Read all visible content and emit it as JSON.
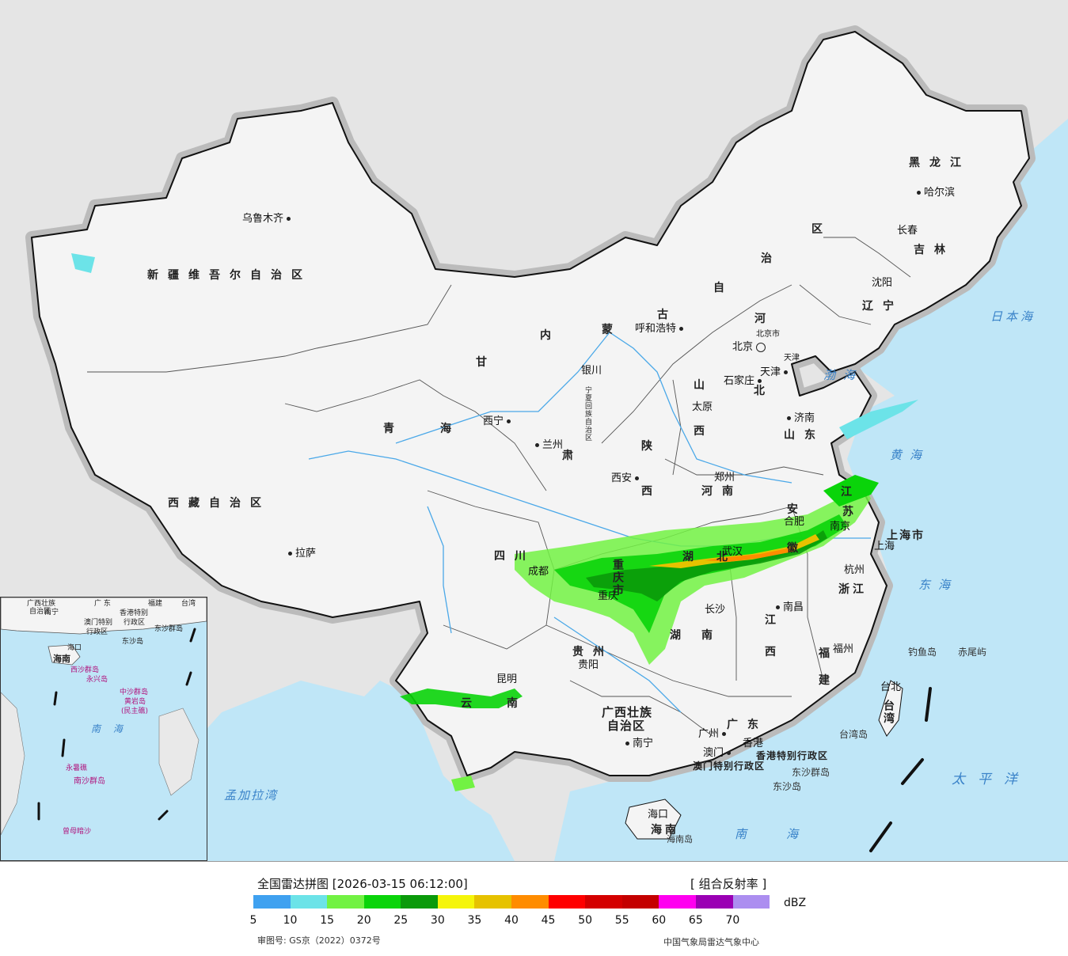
{
  "cities": [
    {
      "id": "urumqi",
      "name": "乌鲁木齐",
      "dot_after": true
    },
    {
      "id": "lhasa",
      "name": "拉萨",
      "dot_after": false
    },
    {
      "id": "xining",
      "name": "西宁",
      "dot_after": true
    },
    {
      "id": "lanzhou",
      "name": "兰州",
      "dot_after": false
    },
    {
      "id": "yinchuan",
      "name": "银川",
      "dot_after": false
    },
    {
      "id": "hohhot",
      "name": "呼和浩特",
      "dot_after": true
    },
    {
      "id": "beijing",
      "name": "北京",
      "dot_after": false
    },
    {
      "id": "beijing-shi",
      "name": "北京市",
      "dot_after": false
    },
    {
      "id": "tianjin",
      "name": "天津",
      "dot_after": true
    },
    {
      "id": "tianjin-shi",
      "name": "天津",
      "dot_after": false
    },
    {
      "id": "shijiazhuang",
      "name": "石家庄",
      "dot_after": true
    },
    {
      "id": "taiyuan",
      "name": "太原",
      "dot_after": false
    },
    {
      "id": "jinan",
      "name": "济南",
      "dot_after": false
    },
    {
      "id": "zhengzhou",
      "name": "郑州",
      "dot_after": false
    },
    {
      "id": "xian",
      "name": "西安",
      "dot_after": true
    },
    {
      "id": "chengdu",
      "name": "成都",
      "dot_after": false
    },
    {
      "id": "chongqing",
      "name": "重庆",
      "dot_after": false
    },
    {
      "id": "guiyang",
      "name": "贵阳",
      "dot_after": false
    },
    {
      "id": "kunming",
      "name": "昆明",
      "dot_after": false
    },
    {
      "id": "nanning",
      "name": "南宁",
      "dot_after": false
    },
    {
      "id": "guangzhou",
      "name": "广州",
      "dot_after": true
    },
    {
      "id": "hongkong",
      "name": "香港",
      "dot_after": false
    },
    {
      "id": "macau",
      "name": "澳门",
      "dot_after": true
    },
    {
      "id": "haikou",
      "name": "海口",
      "dot_after": false
    },
    {
      "id": "changsha",
      "name": "长沙",
      "dot_after": false
    },
    {
      "id": "nanchang",
      "name": "南昌",
      "dot_after": false
    },
    {
      "id": "fuzhou",
      "name": "福州",
      "dot_after": false
    },
    {
      "id": "taipei",
      "name": "台北",
      "dot_after": false
    },
    {
      "id": "hangzhou",
      "name": "杭州",
      "dot_after": false
    },
    {
      "id": "shanghai",
      "name": "上海",
      "dot_after": false
    },
    {
      "id": "nanjing",
      "name": "南京",
      "dot_after": false
    },
    {
      "id": "hefei",
      "name": "合肥",
      "dot_after": false
    },
    {
      "id": "wuhan",
      "name": "武汉",
      "dot_after": false
    },
    {
      "id": "shenyang",
      "name": "沈阳",
      "dot_after": false
    },
    {
      "id": "changchun",
      "name": "长春",
      "dot_after": false
    },
    {
      "id": "harbin",
      "name": "哈尔滨",
      "dot_after": false
    }
  ],
  "provinces": [
    {
      "id": "xinjiang",
      "name": "新疆维吾尔自治区"
    },
    {
      "id": "xizang",
      "name": "西藏自治区"
    },
    {
      "id": "qinghai-a",
      "name": "青"
    },
    {
      "id": "qinghai-b",
      "name": "海"
    },
    {
      "id": "gansu",
      "name": "甘"
    },
    {
      "id": "gansu-b",
      "name": "肃"
    },
    {
      "id": "neimenggu-1",
      "name": "内"
    },
    {
      "id": "neimenggu-2",
      "name": "蒙"
    },
    {
      "id": "neimenggu-3",
      "name": "古"
    },
    {
      "id": "neimenggu-4",
      "name": "自"
    },
    {
      "id": "neimenggu-5",
      "name": "治"
    },
    {
      "id": "neimenggu-6",
      "name": "区"
    },
    {
      "id": "ningxia",
      "name": "宁夏回族自治区"
    },
    {
      "id": "heilongjiang",
      "name": "黑龙江"
    },
    {
      "id": "jilin",
      "name": "吉林"
    },
    {
      "id": "liaoning",
      "name": "辽宁"
    },
    {
      "id": "hebei-a",
      "name": "河"
    },
    {
      "id": "hebei-b",
      "name": "北"
    },
    {
      "id": "shanxi-a",
      "name": "山"
    },
    {
      "id": "shanxi-b",
      "name": "西"
    },
    {
      "id": "shandong",
      "name": "山东"
    },
    {
      "id": "shaanxi-a",
      "name": "陕"
    },
    {
      "id": "shaanxi-b",
      "name": "西"
    },
    {
      "id": "henan",
      "name": "河南"
    },
    {
      "id": "sichuan",
      "name": "四川"
    },
    {
      "id": "chongqing-shi",
      "name": "重庆市"
    },
    {
      "id": "hubei-a",
      "name": "湖"
    },
    {
      "id": "hubei-b",
      "name": "北"
    },
    {
      "id": "hunan-a",
      "name": "湖"
    },
    {
      "id": "hunan-b",
      "name": "南"
    },
    {
      "id": "guizhou",
      "name": "贵州"
    },
    {
      "id": "yunnan-a",
      "name": "云"
    },
    {
      "id": "yunnan-b",
      "name": "南"
    },
    {
      "id": "guangxi-1",
      "name": "广西壮族"
    },
    {
      "id": "guangxi-2",
      "name": "自治区"
    },
    {
      "id": "guangdong",
      "name": "广东"
    },
    {
      "id": "hainan",
      "name": "海南"
    },
    {
      "id": "jiangxi-a",
      "name": "江"
    },
    {
      "id": "jiangxi-b",
      "name": "西"
    },
    {
      "id": "fujian-a",
      "name": "福"
    },
    {
      "id": "fujian-b",
      "name": "建"
    },
    {
      "id": "zhejiang",
      "name": "浙江"
    },
    {
      "id": "anhui-a",
      "name": "安"
    },
    {
      "id": "anhui-b",
      "name": "徽"
    },
    {
      "id": "jiangsu-a",
      "name": "江"
    },
    {
      "id": "jiangsu-b",
      "name": "苏"
    },
    {
      "id": "shanghai-shi",
      "name": "上海市"
    },
    {
      "id": "taiwan",
      "name": "台湾"
    },
    {
      "id": "hk-sar",
      "name": "香港特别行政区"
    },
    {
      "id": "mo-sar",
      "name": "澳门特别行政区"
    }
  ],
  "seas": [
    {
      "id": "bohai",
      "name": "渤海"
    },
    {
      "id": "huanghai",
      "name": "黄海"
    },
    {
      "id": "donghai",
      "name": "东海"
    },
    {
      "id": "nanhai",
      "name": "南海"
    },
    {
      "id": "taipingyang",
      "name": "太平洋"
    },
    {
      "id": "ribenhai",
      "name": "日本海"
    },
    {
      "id": "mengjiala",
      "name": "孟加拉湾"
    }
  ],
  "islands": [
    {
      "id": "diaoyu",
      "name": "钓鱼岛"
    },
    {
      "id": "chiwei",
      "name": "赤尾屿"
    },
    {
      "id": "taiwan-dao",
      "name": "台湾岛"
    },
    {
      "id": "dongsha-qundao",
      "name": "东沙群岛"
    },
    {
      "id": "dongsha-dao",
      "name": "东沙岛"
    },
    {
      "id": "hainan-dao",
      "name": "海南岛"
    }
  ],
  "inset_labels": {
    "guangxi": "广西壮族",
    "guangxi2": "自治区",
    "guangdong": "广 东",
    "fujian": "福建",
    "taiwan": "台湾",
    "nanning": "南宁",
    "xianggang": "香港特别",
    "aomen": "澳门特别",
    "xingzheng": "行政区",
    "xingzheng2": "行政区",
    "dongsha": "东沙群岛",
    "dongshadao": "东沙岛",
    "haikou": "海口",
    "hainan": "海南",
    "xisha": "西沙群岛",
    "yongxing": "永兴岛",
    "zhongsha": "中沙群岛",
    "huangyan": "黄岩岛",
    "minzhu": "(民主礁)",
    "nanhai": "南 海",
    "yongshu": "永暑礁",
    "nansha": "南沙群岛",
    "zengmu": "曾母暗沙"
  },
  "legend": {
    "title": "全国雷达拼图 [2026-03-15 06:12:00]",
    "product": "[ 组合反射率 ]",
    "unit": "dBZ",
    "colors": [
      "#3fa1f0",
      "#6ce3e8",
      "#72f243",
      "#0ad40a",
      "#0a9a0a",
      "#f5f50a",
      "#e6c200",
      "#ff8c00",
      "#ff0000",
      "#d40000",
      "#c40000",
      "#ff00f0",
      "#9a00b4",
      "#ac8ef0"
    ],
    "ticks": [
      "5",
      "10",
      "15",
      "20",
      "25",
      "30",
      "35",
      "40",
      "45",
      "50",
      "55",
      "60",
      "65",
      "70"
    ]
  },
  "review_number": "审图号: GS京（2022）0372号",
  "agency": "中国气象局雷达气象中心"
}
